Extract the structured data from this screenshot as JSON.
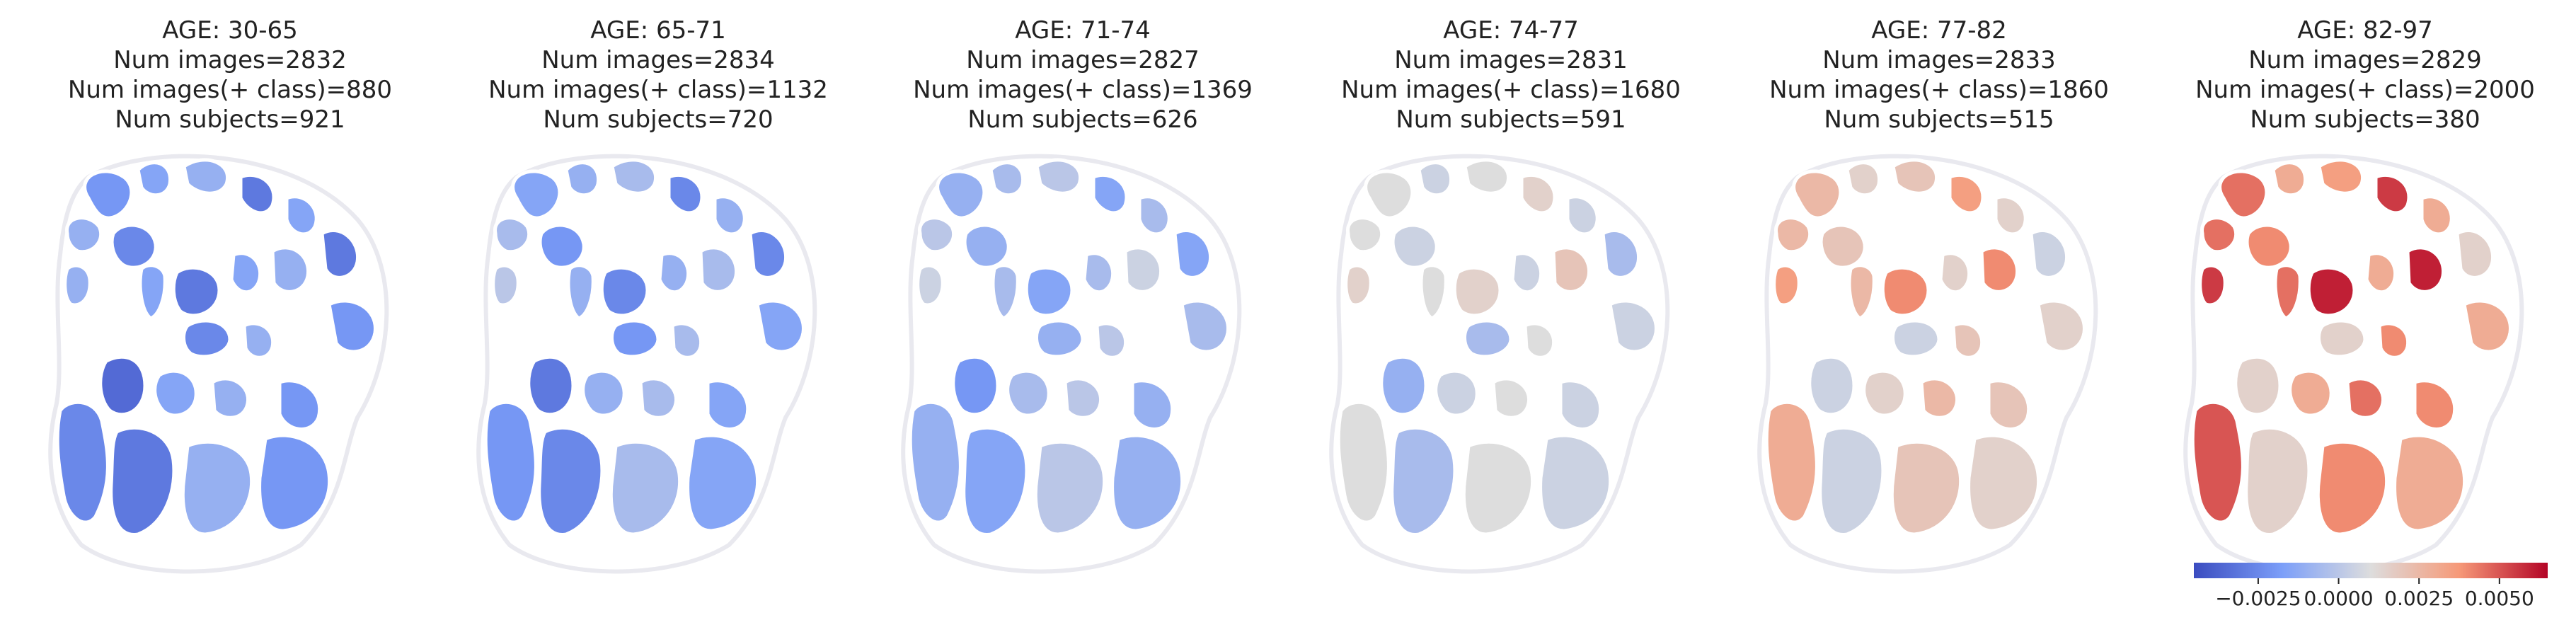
{
  "chart_data": {
    "type": "heatmap",
    "description_note": "",
    "panels": [
      {
        "age_label": "AGE: 30-65",
        "num_images": "Num images=2832",
        "num_pos": "Num images(+ class)=880",
        "num_subjects": "Num subjects=921"
      },
      {
        "age_label": "AGE: 65-71",
        "num_images": "Num images=2834",
        "num_pos": "Num images(+ class)=1132",
        "num_subjects": "Num subjects=720"
      },
      {
        "age_label": "AGE: 71-74",
        "num_images": "Num images=2827",
        "num_pos": "Num images(+ class)=1369",
        "num_subjects": "Num subjects=626"
      },
      {
        "age_label": "AGE: 74-77",
        "num_images": "Num images=2831",
        "num_pos": "Num images(+ class)=1680",
        "num_subjects": "Num subjects=591"
      },
      {
        "age_label": "AGE: 77-82",
        "num_images": "Num images=2833",
        "num_pos": "Num images(+ class)=1860",
        "num_subjects": "Num subjects=515"
      },
      {
        "age_label": "AGE: 82-97",
        "num_images": "Num images=2829",
        "num_pos": "Num images(+ class)=2000",
        "num_subjects": "Num subjects=380"
      }
    ],
    "colorbar": {
      "colormap": "coolwarm",
      "range": [
        -0.0045,
        0.0065
      ],
      "tick_values": [
        -0.0025,
        0.0,
        0.0025,
        0.005
      ],
      "tick_labels": [
        "−0.0025",
        "0.0000",
        "0.0025",
        "0.0050"
      ]
    },
    "region_values": [
      [
        -0.002,
        -0.0015,
        -0.001,
        -0.003,
        -0.0015,
        -0.001,
        -0.0025,
        -0.0015,
        -0.003,
        -0.0015,
        -0.001,
        -0.003,
        -0.002,
        -0.001,
        -0.0025,
        -0.001,
        -0.0035,
        -0.0015,
        -0.001,
        -0.002,
        -0.0025,
        -0.003,
        -0.001,
        -0.002
      ],
      [
        -0.0015,
        -0.001,
        -0.0005,
        -0.0025,
        -0.001,
        -0.0005,
        -0.002,
        -0.001,
        -0.0025,
        -0.001,
        -0.0005,
        -0.0025,
        -0.0015,
        0.0,
        -0.002,
        -0.0005,
        -0.003,
        -0.001,
        -0.0005,
        -0.0015,
        -0.002,
        -0.0025,
        -0.0005,
        -0.0015
      ],
      [
        -0.001,
        -0.0005,
        0.0,
        -0.0015,
        -0.0005,
        0.0,
        -0.001,
        -0.0005,
        -0.0015,
        -0.0005,
        0.0005,
        -0.0015,
        -0.0005,
        0.0005,
        -0.001,
        0.0,
        -0.002,
        -0.0005,
        0.0,
        -0.001,
        -0.001,
        -0.0015,
        0.0,
        -0.001
      ],
      [
        0.001,
        0.0005,
        0.001,
        0.0015,
        0.0005,
        0.001,
        0.0005,
        0.001,
        0.0015,
        0.0005,
        0.002,
        -0.0005,
        0.0005,
        0.0015,
        -0.0005,
        0.001,
        -0.001,
        0.0005,
        0.001,
        0.0005,
        0.001,
        -0.0005,
        0.001,
        0.0005
      ],
      [
        0.0025,
        0.0015,
        0.002,
        0.0035,
        0.0015,
        0.0025,
        0.002,
        0.0025,
        0.004,
        0.0015,
        0.004,
        0.0005,
        0.0015,
        0.0035,
        0.0005,
        0.002,
        0.0005,
        0.0015,
        0.0025,
        0.002,
        0.003,
        0.0005,
        0.002,
        0.0015
      ],
      [
        0.0045,
        0.003,
        0.0035,
        0.0055,
        0.003,
        0.0045,
        0.004,
        0.0045,
        0.006,
        0.003,
        0.006,
        0.0015,
        0.003,
        0.0055,
        0.0015,
        0.004,
        0.0015,
        0.003,
        0.0045,
        0.004,
        0.005,
        0.0015,
        0.004,
        0.003
      ]
    ]
  }
}
